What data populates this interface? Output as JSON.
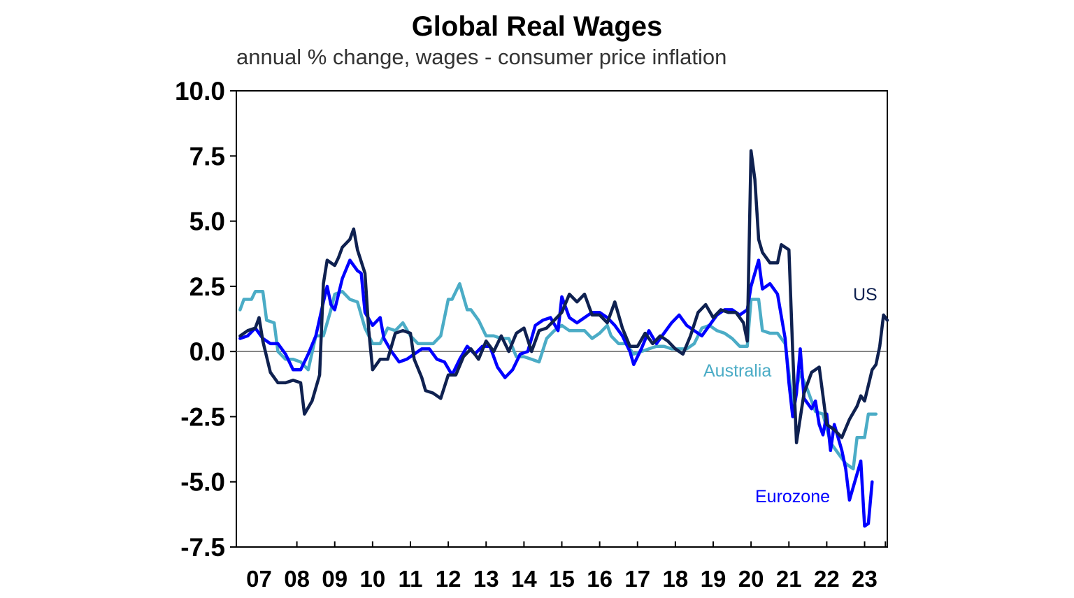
{
  "chart_data": {
    "type": "line",
    "title": "Global Real Wages",
    "subtitle": "annual % change, wages - consumer price inflation",
    "xlabel": "",
    "ylabel": "",
    "ylim": [
      -7.5,
      10.0
    ],
    "yticks": [
      10.0,
      7.5,
      5.0,
      2.5,
      0.0,
      -2.5,
      -5.0,
      -7.5
    ],
    "ytick_labels": [
      "10.0",
      "7.5",
      "5.0",
      "2.5",
      "0.0",
      "-2.5",
      "-5.0",
      "-7.5"
    ],
    "xlim": [
      2006.4,
      2023.6
    ],
    "xticks": [
      2007,
      2008,
      2009,
      2010,
      2011,
      2012,
      2013,
      2014,
      2015,
      2016,
      2017,
      2018,
      2019,
      2020,
      2021,
      2022,
      2023
    ],
    "xtick_labels": [
      "07",
      "08",
      "09",
      "10",
      "11",
      "12",
      "13",
      "14",
      "15",
      "16",
      "17",
      "18",
      "19",
      "20",
      "21",
      "22",
      "23"
    ],
    "zero_line": true,
    "grid": false,
    "series": [
      {
        "name": "Australia",
        "color": "#4bacc6",
        "points": [
          [
            2006.5,
            1.6
          ],
          [
            2006.6,
            2.0
          ],
          [
            2006.8,
            2.0
          ],
          [
            2006.9,
            2.3
          ],
          [
            2007.1,
            2.3
          ],
          [
            2007.2,
            1.2
          ],
          [
            2007.4,
            1.1
          ],
          [
            2007.5,
            0.0
          ],
          [
            2007.7,
            -0.3
          ],
          [
            2007.9,
            -0.3
          ],
          [
            2008.1,
            -0.4
          ],
          [
            2008.3,
            -0.7
          ],
          [
            2008.5,
            0.6
          ],
          [
            2008.7,
            0.6
          ],
          [
            2008.9,
            1.6
          ],
          [
            2009.0,
            2.2
          ],
          [
            2009.2,
            2.3
          ],
          [
            2009.4,
            2.0
          ],
          [
            2009.6,
            1.9
          ],
          [
            2009.8,
            0.9
          ],
          [
            2010.0,
            0.3
          ],
          [
            2010.2,
            0.3
          ],
          [
            2010.4,
            0.9
          ],
          [
            2010.6,
            0.8
          ],
          [
            2010.8,
            1.1
          ],
          [
            2011.0,
            0.6
          ],
          [
            2011.2,
            0.3
          ],
          [
            2011.4,
            0.3
          ],
          [
            2011.6,
            0.3
          ],
          [
            2011.8,
            0.6
          ],
          [
            2012.0,
            2.0
          ],
          [
            2012.1,
            2.0
          ],
          [
            2012.3,
            2.6
          ],
          [
            2012.5,
            1.6
          ],
          [
            2012.6,
            1.6
          ],
          [
            2012.8,
            1.2
          ],
          [
            2013.0,
            0.6
          ],
          [
            2013.2,
            0.6
          ],
          [
            2013.4,
            0.5
          ],
          [
            2013.6,
            0.5
          ],
          [
            2013.8,
            -0.2
          ],
          [
            2014.0,
            -0.2
          ],
          [
            2014.2,
            -0.3
          ],
          [
            2014.4,
            -0.4
          ],
          [
            2014.6,
            0.5
          ],
          [
            2014.8,
            0.8
          ],
          [
            2015.0,
            1.0
          ],
          [
            2015.2,
            0.8
          ],
          [
            2015.4,
            0.8
          ],
          [
            2015.6,
            0.8
          ],
          [
            2015.8,
            0.5
          ],
          [
            2016.0,
            0.7
          ],
          [
            2016.2,
            1.0
          ],
          [
            2016.3,
            0.6
          ],
          [
            2016.5,
            0.3
          ],
          [
            2016.7,
            0.3
          ],
          [
            2016.9,
            -0.1
          ],
          [
            2017.1,
            0.0
          ],
          [
            2017.3,
            0.1
          ],
          [
            2017.5,
            0.2
          ],
          [
            2017.7,
            0.2
          ],
          [
            2017.9,
            0.1
          ],
          [
            2018.1,
            0.1
          ],
          [
            2018.3,
            0.1
          ],
          [
            2018.5,
            0.3
          ],
          [
            2018.7,
            0.9
          ],
          [
            2018.9,
            1.0
          ],
          [
            2019.1,
            0.8
          ],
          [
            2019.3,
            0.7
          ],
          [
            2019.5,
            0.5
          ],
          [
            2019.7,
            0.2
          ],
          [
            2019.9,
            0.2
          ],
          [
            2020.0,
            2.0
          ],
          [
            2020.2,
            2.0
          ],
          [
            2020.3,
            0.8
          ],
          [
            2020.5,
            0.7
          ],
          [
            2020.7,
            0.7
          ],
          [
            2020.9,
            0.3
          ],
          [
            2021.1,
            -2.0
          ],
          [
            2021.3,
            -0.8
          ],
          [
            2021.5,
            -1.5
          ],
          [
            2021.7,
            -2.3
          ],
          [
            2021.9,
            -2.4
          ],
          [
            2022.1,
            -3.5
          ],
          [
            2022.3,
            -3.9
          ],
          [
            2022.5,
            -4.3
          ],
          [
            2022.7,
            -4.5
          ],
          [
            2022.8,
            -3.3
          ],
          [
            2023.0,
            -3.3
          ],
          [
            2023.1,
            -2.4
          ],
          [
            2023.3,
            -2.4
          ]
        ]
      },
      {
        "name": "Eurozone",
        "color": "#0000ff",
        "points": [
          [
            2006.5,
            0.5
          ],
          [
            2006.7,
            0.6
          ],
          [
            2006.9,
            0.9
          ],
          [
            2007.1,
            0.5
          ],
          [
            2007.3,
            0.3
          ],
          [
            2007.5,
            0.3
          ],
          [
            2007.7,
            -0.1
          ],
          [
            2007.9,
            -0.7
          ],
          [
            2008.1,
            -0.7
          ],
          [
            2008.3,
            -0.1
          ],
          [
            2008.5,
            0.6
          ],
          [
            2008.7,
            1.9
          ],
          [
            2008.8,
            2.5
          ],
          [
            2008.9,
            1.8
          ],
          [
            2009.0,
            1.6
          ],
          [
            2009.2,
            2.8
          ],
          [
            2009.4,
            3.5
          ],
          [
            2009.6,
            3.1
          ],
          [
            2009.7,
            3.0
          ],
          [
            2009.8,
            1.5
          ],
          [
            2010.0,
            1.0
          ],
          [
            2010.2,
            1.3
          ],
          [
            2010.3,
            0.5
          ],
          [
            2010.5,
            0.0
          ],
          [
            2010.7,
            -0.4
          ],
          [
            2010.9,
            -0.3
          ],
          [
            2011.1,
            -0.1
          ],
          [
            2011.3,
            0.1
          ],
          [
            2011.5,
            0.1
          ],
          [
            2011.7,
            -0.3
          ],
          [
            2011.9,
            -0.4
          ],
          [
            2012.1,
            -0.9
          ],
          [
            2012.3,
            -0.3
          ],
          [
            2012.5,
            0.2
          ],
          [
            2012.7,
            -0.1
          ],
          [
            2012.9,
            0.2
          ],
          [
            2013.1,
            0.2
          ],
          [
            2013.3,
            -0.6
          ],
          [
            2013.5,
            -1.0
          ],
          [
            2013.7,
            -0.7
          ],
          [
            2013.9,
            -0.1
          ],
          [
            2014.1,
            0.0
          ],
          [
            2014.3,
            1.0
          ],
          [
            2014.5,
            1.2
          ],
          [
            2014.7,
            1.3
          ],
          [
            2014.9,
            0.8
          ],
          [
            2015.0,
            2.1
          ],
          [
            2015.2,
            1.3
          ],
          [
            2015.4,
            1.1
          ],
          [
            2015.6,
            1.3
          ],
          [
            2015.8,
            1.5
          ],
          [
            2016.0,
            1.5
          ],
          [
            2016.2,
            1.3
          ],
          [
            2016.4,
            1.0
          ],
          [
            2016.6,
            0.6
          ],
          [
            2016.8,
            0.0
          ],
          [
            2016.9,
            -0.5
          ],
          [
            2017.1,
            0.1
          ],
          [
            2017.3,
            0.8
          ],
          [
            2017.5,
            0.3
          ],
          [
            2017.7,
            0.7
          ],
          [
            2017.9,
            1.1
          ],
          [
            2018.1,
            1.4
          ],
          [
            2018.3,
            1.0
          ],
          [
            2018.5,
            0.8
          ],
          [
            2018.7,
            0.6
          ],
          [
            2018.9,
            1.0
          ],
          [
            2019.1,
            1.4
          ],
          [
            2019.3,
            1.6
          ],
          [
            2019.5,
            1.6
          ],
          [
            2019.7,
            1.4
          ],
          [
            2019.9,
            1.6
          ],
          [
            2020.0,
            2.5
          ],
          [
            2020.2,
            3.5
          ],
          [
            2020.3,
            2.4
          ],
          [
            2020.5,
            2.6
          ],
          [
            2020.7,
            2.2
          ],
          [
            2020.9,
            0.5
          ],
          [
            2021.0,
            -1.2
          ],
          [
            2021.1,
            -2.5
          ],
          [
            2021.2,
            -1.6
          ],
          [
            2021.3,
            0.1
          ],
          [
            2021.4,
            -1.8
          ],
          [
            2021.6,
            -2.2
          ],
          [
            2021.7,
            -1.9
          ],
          [
            2021.8,
            -2.8
          ],
          [
            2021.9,
            -3.2
          ],
          [
            2022.0,
            -2.4
          ],
          [
            2022.1,
            -3.8
          ],
          [
            2022.2,
            -2.8
          ],
          [
            2022.4,
            -3.8
          ],
          [
            2022.5,
            -4.5
          ],
          [
            2022.6,
            -5.7
          ],
          [
            2022.8,
            -4.7
          ],
          [
            2022.9,
            -4.2
          ],
          [
            2023.0,
            -6.7
          ],
          [
            2023.1,
            -6.6
          ],
          [
            2023.2,
            -5.0
          ]
        ]
      },
      {
        "name": "US",
        "color": "#0f2150",
        "points": [
          [
            2006.5,
            0.6
          ],
          [
            2006.7,
            0.8
          ],
          [
            2006.9,
            0.9
          ],
          [
            2007.0,
            1.3
          ],
          [
            2007.1,
            0.4
          ],
          [
            2007.3,
            -0.8
          ],
          [
            2007.5,
            -1.2
          ],
          [
            2007.7,
            -1.2
          ],
          [
            2007.9,
            -1.1
          ],
          [
            2008.1,
            -1.2
          ],
          [
            2008.2,
            -2.4
          ],
          [
            2008.4,
            -1.9
          ],
          [
            2008.6,
            -0.9
          ],
          [
            2008.7,
            2.6
          ],
          [
            2008.8,
            3.5
          ],
          [
            2009.0,
            3.3
          ],
          [
            2009.1,
            3.6
          ],
          [
            2009.2,
            4.0
          ],
          [
            2009.4,
            4.3
          ],
          [
            2009.5,
            4.7
          ],
          [
            2009.6,
            3.9
          ],
          [
            2009.8,
            3.0
          ],
          [
            2009.9,
            0.8
          ],
          [
            2010.0,
            -0.7
          ],
          [
            2010.2,
            -0.3
          ],
          [
            2010.4,
            -0.3
          ],
          [
            2010.6,
            0.7
          ],
          [
            2010.8,
            0.8
          ],
          [
            2011.0,
            0.7
          ],
          [
            2011.1,
            -0.3
          ],
          [
            2011.3,
            -1.0
          ],
          [
            2011.4,
            -1.5
          ],
          [
            2011.6,
            -1.6
          ],
          [
            2011.8,
            -1.8
          ],
          [
            2012.0,
            -0.9
          ],
          [
            2012.2,
            -0.9
          ],
          [
            2012.4,
            -0.2
          ],
          [
            2012.6,
            0.1
          ],
          [
            2012.8,
            -0.3
          ],
          [
            2013.0,
            0.4
          ],
          [
            2013.2,
            0.0
          ],
          [
            2013.4,
            0.6
          ],
          [
            2013.6,
            0.0
          ],
          [
            2013.8,
            0.7
          ],
          [
            2014.0,
            0.9
          ],
          [
            2014.2,
            0.0
          ],
          [
            2014.4,
            0.8
          ],
          [
            2014.6,
            0.9
          ],
          [
            2014.8,
            1.2
          ],
          [
            2015.0,
            1.5
          ],
          [
            2015.2,
            2.2
          ],
          [
            2015.4,
            1.9
          ],
          [
            2015.6,
            2.2
          ],
          [
            2015.8,
            1.4
          ],
          [
            2016.0,
            1.4
          ],
          [
            2016.2,
            1.1
          ],
          [
            2016.4,
            1.9
          ],
          [
            2016.6,
            0.9
          ],
          [
            2016.8,
            0.2
          ],
          [
            2017.0,
            0.2
          ],
          [
            2017.2,
            0.7
          ],
          [
            2017.4,
            0.3
          ],
          [
            2017.6,
            0.6
          ],
          [
            2017.8,
            0.4
          ],
          [
            2018.0,
            0.1
          ],
          [
            2018.2,
            -0.1
          ],
          [
            2018.4,
            0.6
          ],
          [
            2018.6,
            1.5
          ],
          [
            2018.8,
            1.8
          ],
          [
            2019.0,
            1.3
          ],
          [
            2019.2,
            1.6
          ],
          [
            2019.4,
            1.5
          ],
          [
            2019.6,
            1.5
          ],
          [
            2019.8,
            1.1
          ],
          [
            2019.9,
            0.4
          ],
          [
            2020.0,
            7.7
          ],
          [
            2020.1,
            6.6
          ],
          [
            2020.2,
            4.3
          ],
          [
            2020.3,
            3.8
          ],
          [
            2020.5,
            3.4
          ],
          [
            2020.7,
            3.4
          ],
          [
            2020.8,
            4.1
          ],
          [
            2021.0,
            3.9
          ],
          [
            2021.1,
            0.0
          ],
          [
            2021.2,
            -3.5
          ],
          [
            2021.4,
            -1.6
          ],
          [
            2021.6,
            -0.8
          ],
          [
            2021.8,
            -0.6
          ],
          [
            2022.0,
            -2.8
          ],
          [
            2022.2,
            -3.0
          ],
          [
            2022.4,
            -3.3
          ],
          [
            2022.6,
            -2.6
          ],
          [
            2022.8,
            -2.1
          ],
          [
            2022.9,
            -1.7
          ],
          [
            2023.0,
            -1.9
          ],
          [
            2023.2,
            -0.7
          ],
          [
            2023.3,
            -0.5
          ],
          [
            2023.4,
            0.2
          ],
          [
            2023.5,
            1.4
          ],
          [
            2023.6,
            1.2
          ]
        ]
      }
    ]
  }
}
